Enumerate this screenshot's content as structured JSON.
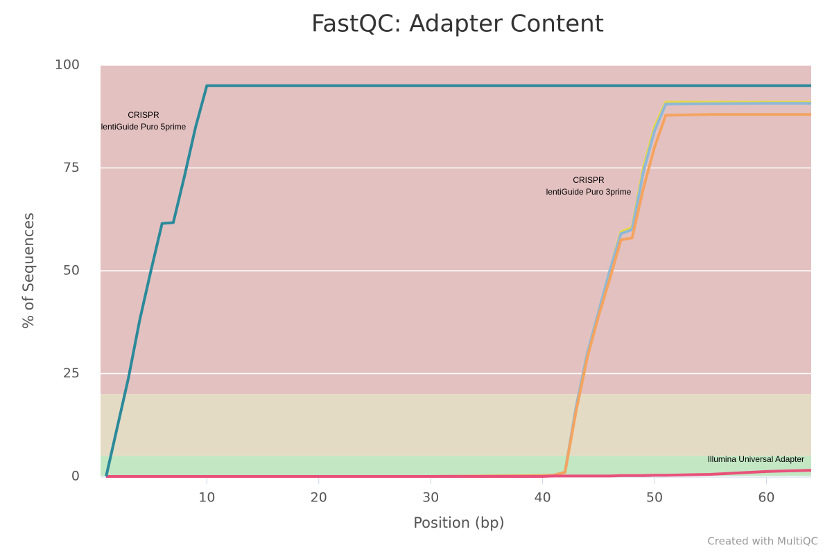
{
  "chart_data": {
    "type": "line",
    "title": "FastQC: Adapter Content",
    "x_label": "Position (bp)",
    "y_label": "% of Sequences",
    "credit": "Created with MultiQC",
    "x": [
      1,
      2,
      3,
      4,
      5,
      6,
      7,
      8,
      9,
      10,
      20,
      30,
      40,
      41,
      42,
      43,
      44,
      45,
      46,
      47,
      48,
      49,
      50,
      51,
      55,
      60,
      64
    ],
    "series": [
      {
        "color": "#e6d84a",
        "values": [
          0,
          0,
          0,
          0,
          0,
          0,
          0,
          0,
          0,
          0,
          0,
          0,
          0.2,
          0.3,
          1,
          17,
          30,
          40,
          50,
          59.5,
          60.5,
          75,
          85,
          91,
          91,
          91,
          91
        ]
      },
      {
        "color": "#8fb8d8",
        "values": [
          0,
          0,
          0,
          0,
          0,
          0,
          0,
          0,
          0,
          0,
          0,
          0,
          0.2,
          0.3,
          1,
          17,
          30,
          40,
          50,
          59,
          60,
          74,
          84,
          90.5,
          90.6,
          90.7,
          90.7
        ]
      },
      {
        "color": "#f4a460",
        "values": [
          0,
          0,
          0,
          0,
          0,
          0,
          0,
          0,
          0,
          0,
          0,
          0,
          0.2,
          0.3,
          1,
          16,
          29,
          39,
          48,
          57.5,
          58,
          70,
          80,
          87.8,
          88,
          88,
          88
        ]
      },
      {
        "color": "#e8517a",
        "values": [
          0,
          0,
          0,
          0,
          0,
          0,
          0,
          0,
          0,
          0,
          0,
          0,
          0,
          0.1,
          0.1,
          0.1,
          0.1,
          0.1,
          0.1,
          0.2,
          0.2,
          0.2,
          0.3,
          0.3,
          0.5,
          1.2,
          1.5
        ]
      },
      {
        "color": "#2b8a9a",
        "values": [
          0,
          12,
          24,
          38,
          50,
          61.5,
          61.7,
          73,
          85,
          95,
          95,
          95,
          95,
          95,
          95,
          95,
          95,
          95,
          95,
          95,
          95,
          95,
          95,
          95,
          95,
          95,
          95
        ]
      }
    ],
    "annotations": [
      [
        "CRISPR",
        "lentiGuide Puro 5prime"
      ],
      [
        "CRISPR",
        "lentiGuide Puro 3prime"
      ],
      [
        "Illumina Universal Adapter"
      ]
    ],
    "plot_bands": [
      {
        "from": 20,
        "to": 100,
        "color": "#e4c1c1"
      },
      {
        "from": 5,
        "to": 20,
        "color": "#e4dbc4"
      },
      {
        "from": 0,
        "to": 5,
        "color": "#c3e6c3"
      }
    ],
    "xlim": [
      0.5,
      64
    ],
    "ylim": [
      0,
      100
    ],
    "xticks": [
      10,
      20,
      30,
      40,
      50,
      60
    ],
    "yticks": [
      0,
      25,
      50,
      75,
      100
    ],
    "grid": true
  }
}
